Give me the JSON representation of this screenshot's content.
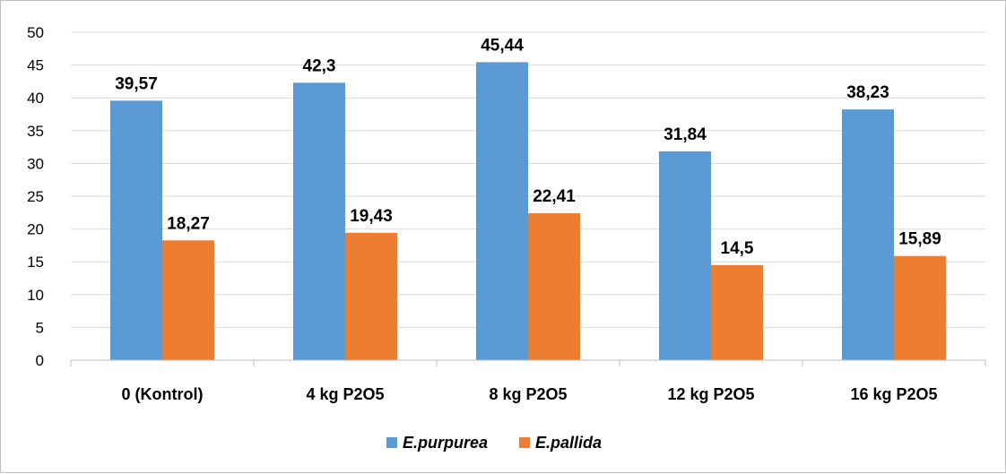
{
  "chart_data": {
    "type": "bar",
    "categories": [
      "0 (Kontrol)",
      "4 kg P2O5",
      "8 kg P2O5",
      "12 kg P2O5",
      "16 kg P2O5"
    ],
    "series": [
      {
        "name": "E.purpurea",
        "values": [
          39.57,
          42.3,
          45.44,
          31.84,
          38.23
        ],
        "labels": [
          "39,57",
          "42,3",
          "45,44",
          "31,84",
          "38,23"
        ],
        "color": "#5b9bd5"
      },
      {
        "name": "E.pallida",
        "values": [
          18.27,
          19.43,
          22.41,
          14.5,
          15.89
        ],
        "labels": [
          "18,27",
          "19,43",
          "22,41",
          "14,5",
          "15,89"
        ],
        "color": "#ed7d31"
      }
    ],
    "yticks": [
      "0",
      "5",
      "10",
      "15",
      "20",
      "25",
      "30",
      "35",
      "40",
      "45",
      "50"
    ],
    "ylim": [
      0,
      50
    ],
    "grid": true,
    "legend_position": "bottom",
    "title": "",
    "xlabel": "",
    "ylabel": ""
  }
}
